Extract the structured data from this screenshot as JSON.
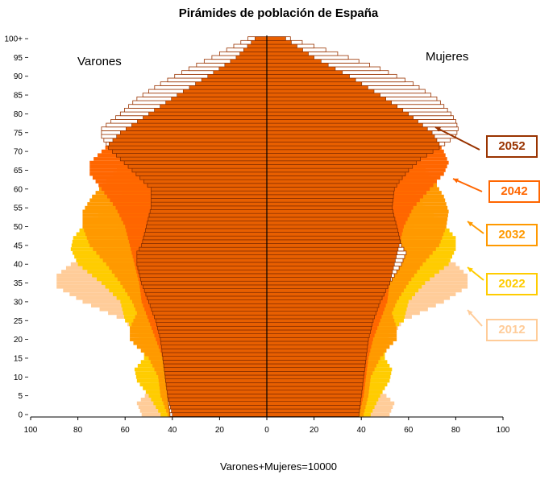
{
  "chart_data": {
    "type": "population-pyramid",
    "title": "Pirámides de población de España",
    "left_label": "Varones",
    "right_label": "Mujeres",
    "footnote": "Varones+Mujeres=10000",
    "x_ticks": [
      "100",
      "80",
      "60",
      "40",
      "20",
      "0",
      "20",
      "40",
      "60",
      "80",
      "100"
    ],
    "xlim": [
      -100,
      100
    ],
    "y_tick_labels": [
      "0",
      "5",
      "10",
      "15",
      "20",
      "25",
      "30",
      "35",
      "40",
      "45",
      "50",
      "55",
      "60",
      "65",
      "70",
      "75",
      "80",
      "85",
      "90",
      "95",
      "100+"
    ],
    "age_groups": 101,
    "series": [
      {
        "name": "2012",
        "color": "#FFCC99",
        "outline": false,
        "male_points": [
          [
            0,
            53
          ],
          [
            3,
            55
          ],
          [
            6,
            50
          ],
          [
            10,
            49
          ],
          [
            14,
            50
          ],
          [
            17,
            53
          ],
          [
            20,
            55
          ],
          [
            25,
            60
          ],
          [
            30,
            78
          ],
          [
            34,
            89
          ],
          [
            37,
            89
          ],
          [
            40,
            83
          ],
          [
            43,
            72
          ],
          [
            47,
            65
          ],
          [
            50,
            63
          ],
          [
            55,
            55
          ],
          [
            60,
            50
          ],
          [
            65,
            48
          ],
          [
            70,
            43
          ],
          [
            75,
            40
          ],
          [
            80,
            33
          ],
          [
            85,
            25
          ],
          [
            90,
            15
          ],
          [
            95,
            8
          ],
          [
            100,
            3
          ]
        ],
        "female_points": [
          [
            0,
            52
          ],
          [
            3,
            54
          ],
          [
            6,
            49
          ],
          [
            10,
            47
          ],
          [
            14,
            48
          ],
          [
            17,
            50
          ],
          [
            20,
            52
          ],
          [
            25,
            58
          ],
          [
            30,
            75
          ],
          [
            34,
            85
          ],
          [
            37,
            85
          ],
          [
            40,
            80
          ],
          [
            43,
            70
          ],
          [
            47,
            63
          ],
          [
            50,
            62
          ],
          [
            55,
            56
          ],
          [
            60,
            52
          ],
          [
            65,
            50
          ],
          [
            70,
            47
          ],
          [
            75,
            46
          ],
          [
            80,
            42
          ],
          [
            85,
            36
          ],
          [
            90,
            26
          ],
          [
            95,
            14
          ],
          [
            100,
            5
          ]
        ]
      },
      {
        "name": "2022",
        "color": "#FFCC00",
        "outline": false,
        "male_points": [
          [
            0,
            45
          ],
          [
            5,
            50
          ],
          [
            9,
            55
          ],
          [
            12,
            56
          ],
          [
            15,
            52
          ],
          [
            18,
            52
          ],
          [
            22,
            55
          ],
          [
            25,
            60
          ],
          [
            30,
            62
          ],
          [
            35,
            70
          ],
          [
            40,
            80
          ],
          [
            44,
            83
          ],
          [
            47,
            82
          ],
          [
            50,
            78
          ],
          [
            55,
            67
          ],
          [
            60,
            60
          ],
          [
            65,
            55
          ],
          [
            70,
            52
          ],
          [
            75,
            46
          ],
          [
            80,
            40
          ],
          [
            85,
            30
          ],
          [
            90,
            20
          ],
          [
            95,
            10
          ],
          [
            100,
            4
          ]
        ],
        "female_points": [
          [
            0,
            44
          ],
          [
            5,
            48
          ],
          [
            9,
            52
          ],
          [
            12,
            53
          ],
          [
            15,
            50
          ],
          [
            18,
            50
          ],
          [
            22,
            52
          ],
          [
            25,
            58
          ],
          [
            30,
            60
          ],
          [
            35,
            67
          ],
          [
            40,
            77
          ],
          [
            44,
            80
          ],
          [
            47,
            80
          ],
          [
            50,
            76
          ],
          [
            55,
            67
          ],
          [
            60,
            62
          ],
          [
            65,
            57
          ],
          [
            70,
            55
          ],
          [
            75,
            52
          ],
          [
            80,
            47
          ],
          [
            85,
            40
          ],
          [
            90,
            30
          ],
          [
            95,
            16
          ],
          [
            100,
            6
          ]
        ]
      },
      {
        "name": "2032",
        "color": "#FF9900",
        "outline": false,
        "male_points": [
          [
            0,
            42
          ],
          [
            5,
            45
          ],
          [
            10,
            46
          ],
          [
            15,
            50
          ],
          [
            18,
            55
          ],
          [
            20,
            58
          ],
          [
            23,
            58
          ],
          [
            27,
            55
          ],
          [
            30,
            57
          ],
          [
            35,
            62
          ],
          [
            40,
            68
          ],
          [
            45,
            75
          ],
          [
            50,
            78
          ],
          [
            54,
            78
          ],
          [
            58,
            74
          ],
          [
            62,
            68
          ],
          [
            66,
            62
          ],
          [
            70,
            57
          ],
          [
            75,
            52
          ],
          [
            80,
            44
          ],
          [
            85,
            34
          ],
          [
            90,
            22
          ],
          [
            95,
            12
          ],
          [
            100,
            5
          ]
        ],
        "female_points": [
          [
            0,
            41
          ],
          [
            5,
            43
          ],
          [
            10,
            44
          ],
          [
            15,
            48
          ],
          [
            18,
            52
          ],
          [
            20,
            55
          ],
          [
            23,
            55
          ],
          [
            27,
            53
          ],
          [
            30,
            55
          ],
          [
            35,
            60
          ],
          [
            40,
            66
          ],
          [
            45,
            73
          ],
          [
            50,
            76
          ],
          [
            54,
            77
          ],
          [
            58,
            75
          ],
          [
            62,
            71
          ],
          [
            66,
            66
          ],
          [
            70,
            62
          ],
          [
            75,
            57
          ],
          [
            80,
            51
          ],
          [
            85,
            44
          ],
          [
            90,
            33
          ],
          [
            95,
            18
          ],
          [
            100,
            7
          ]
        ]
      },
      {
        "name": "2042",
        "color": "#FF6600",
        "outline": false,
        "male_points": [
          [
            0,
            40
          ],
          [
            5,
            42
          ],
          [
            10,
            43
          ],
          [
            15,
            44
          ],
          [
            20,
            47
          ],
          [
            25,
            50
          ],
          [
            30,
            53
          ],
          [
            35,
            54
          ],
          [
            40,
            56
          ],
          [
            45,
            58
          ],
          [
            50,
            60
          ],
          [
            55,
            64
          ],
          [
            60,
            70
          ],
          [
            64,
            75
          ],
          [
            67,
            75
          ],
          [
            70,
            70
          ],
          [
            75,
            62
          ],
          [
            80,
            50
          ],
          [
            85,
            38
          ],
          [
            90,
            25
          ],
          [
            95,
            13
          ],
          [
            100,
            5
          ]
        ],
        "female_points": [
          [
            0,
            39
          ],
          [
            5,
            41
          ],
          [
            10,
            42
          ],
          [
            15,
            43
          ],
          [
            20,
            45
          ],
          [
            25,
            48
          ],
          [
            30,
            51
          ],
          [
            35,
            52
          ],
          [
            40,
            54
          ],
          [
            45,
            56
          ],
          [
            50,
            58
          ],
          [
            55,
            62
          ],
          [
            60,
            69
          ],
          [
            64,
            75
          ],
          [
            67,
            77
          ],
          [
            70,
            75
          ],
          [
            75,
            70
          ],
          [
            80,
            60
          ],
          [
            85,
            48
          ],
          [
            90,
            35
          ],
          [
            95,
            20
          ],
          [
            100,
            8
          ]
        ]
      },
      {
        "name": "2052",
        "color": "#E85F00",
        "outline": true,
        "male_points": [
          [
            0,
            41
          ],
          [
            5,
            42
          ],
          [
            10,
            43
          ],
          [
            15,
            44
          ],
          [
            20,
            45
          ],
          [
            25,
            47
          ],
          [
            30,
            50
          ],
          [
            35,
            53
          ],
          [
            40,
            55
          ],
          [
            43,
            55
          ],
          [
            45,
            53
          ],
          [
            50,
            51
          ],
          [
            55,
            49
          ],
          [
            60,
            49
          ],
          [
            62,
            52
          ],
          [
            65,
            57
          ],
          [
            68,
            62
          ],
          [
            71,
            67
          ],
          [
            74,
            70
          ],
          [
            76,
            70
          ],
          [
            78,
            66
          ],
          [
            80,
            62
          ],
          [
            84,
            55
          ],
          [
            88,
            45
          ],
          [
            92,
            33
          ],
          [
            96,
            20
          ],
          [
            100,
            8
          ]
        ],
        "female_points": [
          [
            0,
            39
          ],
          [
            5,
            40
          ],
          [
            10,
            41
          ],
          [
            15,
            42
          ],
          [
            20,
            43
          ],
          [
            25,
            45
          ],
          [
            30,
            48
          ],
          [
            35,
            52
          ],
          [
            40,
            57
          ],
          [
            43,
            59
          ],
          [
            45,
            57
          ],
          [
            50,
            55
          ],
          [
            55,
            53
          ],
          [
            60,
            54
          ],
          [
            62,
            56
          ],
          [
            65,
            60
          ],
          [
            68,
            65
          ],
          [
            71,
            73
          ],
          [
            74,
            80
          ],
          [
            76,
            81
          ],
          [
            78,
            80
          ],
          [
            80,
            78
          ],
          [
            84,
            72
          ],
          [
            88,
            62
          ],
          [
            92,
            48
          ],
          [
            96,
            30
          ],
          [
            100,
            10
          ]
        ]
      }
    ],
    "series_labels": [
      {
        "name": "2052",
        "text": "2052",
        "color": "#993300"
      },
      {
        "name": "2042",
        "text": "2042",
        "color": "#FF6600"
      },
      {
        "name": "2032",
        "text": "2032",
        "color": "#FF9900"
      },
      {
        "name": "2022",
        "text": "2022",
        "color": "#FFCC00"
      },
      {
        "name": "2012",
        "text": "2012",
        "color": "#FFCC99"
      }
    ]
  }
}
